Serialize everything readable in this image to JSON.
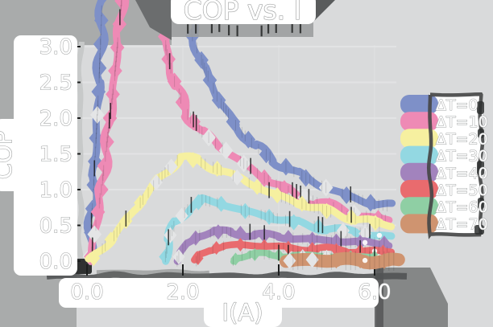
{
  "colors": {
    "outer_gray": "#a9abab",
    "inner_gray": "#d9dadb",
    "panel_white": "#ffffff",
    "dark_blob_left": "#6b6d6e",
    "dark_blob_right": "#595b5c",
    "title_band": "#9b9d9e",
    "corner_blob": "#858787",
    "axis_dark": "#515354",
    "spine_light": "#c7c9c9",
    "tick_black": "#1c1e1e",
    "origin_blob": "#2f3131",
    "legend_border": "#454747",
    "label_fill": "#ffffff",
    "label_stroke": "#a2a4a4"
  },
  "chart_data": {
    "type": "line",
    "style": "xkcd-sketch",
    "title": "COP vs. I",
    "xlabel": "I(A)",
    "ylabel": "COP",
    "xlim": [
      0,
      6.45
    ],
    "ylim": [
      0,
      3.2
    ],
    "grid": "faint",
    "legend_position": "right",
    "marker": "diamond",
    "xticks": [
      {
        "label": "0.0",
        "value": 0
      },
      {
        "label": "2.0",
        "value": 2
      },
      {
        "label": "4.0",
        "value": 4
      },
      {
        "label": "6.0",
        "value": 6
      }
    ],
    "yticks": [
      {
        "label": "0.0",
        "value": 0
      },
      {
        "label": "0.5",
        "value": 0.5
      },
      {
        "label": "1.0",
        "value": 1
      },
      {
        "label": "1.5",
        "value": 1.5
      },
      {
        "label": "2.0",
        "value": 2
      },
      {
        "label": "2.5",
        "value": 2.5
      },
      {
        "label": "3.0",
        "value": 3
      }
    ],
    "series": [
      {
        "name": "ΔT=0",
        "color": "#7e90c8",
        "x": [
          0.05,
          0.15,
          0.25,
          0.33,
          2.08,
          2.2,
          2.45,
          2.75,
          3.1,
          3.5,
          3.9,
          4.4,
          4.9,
          5.5,
          6.0,
          6.35
        ],
        "y": [
          0,
          1.2,
          2.5,
          3.9,
          3.9,
          3.15,
          2.7,
          2.25,
          1.9,
          1.6,
          1.42,
          1.22,
          1.05,
          0.9,
          0.8,
          0.76
        ]
      },
      {
        "name": "ΔT=10",
        "color": "#ee8ab5",
        "x": [
          0.07,
          0.3,
          0.55,
          0.76,
          1.53,
          1.65,
          1.85,
          2.1,
          2.4,
          2.75,
          3.2,
          3.7,
          4.2,
          4.8,
          5.4,
          6.0,
          6.3
        ],
        "y": [
          0,
          1.0,
          2.4,
          3.9,
          3.9,
          2.95,
          2.45,
          2.05,
          1.8,
          1.62,
          1.4,
          1.16,
          0.98,
          0.82,
          0.7,
          0.6,
          0.57
        ]
      },
      {
        "name": "ΔT=20",
        "color": "#f6f0a0",
        "x": [
          0.08,
          0.5,
          1.0,
          1.5,
          1.95,
          2.3,
          2.8,
          3.3,
          3.8,
          4.4,
          5.0,
          5.6,
          6.1,
          6.35
        ],
        "y": [
          0,
          0.3,
          0.72,
          1.15,
          1.45,
          1.4,
          1.27,
          1.12,
          0.96,
          0.82,
          0.7,
          0.6,
          0.52,
          0.5
        ]
      },
      {
        "name": "ΔT=30",
        "color": "#93d8e2",
        "x": [
          1.62,
          1.7,
          1.85,
          2.1,
          2.4,
          2.8,
          3.3,
          3.8,
          4.4,
          5.0,
          5.6,
          6.1,
          6.35
        ],
        "y": [
          0,
          0.3,
          0.55,
          0.72,
          0.86,
          0.8,
          0.7,
          0.62,
          0.53,
          0.46,
          0.4,
          0.36,
          0.34
        ]
      },
      {
        "name": "ΔT=40",
        "color": "#a283bd",
        "x": [
          1.88,
          1.95,
          2.1,
          2.35,
          2.65,
          3.0,
          3.5,
          4.0,
          4.6,
          5.2,
          5.8,
          6.3
        ],
        "y": [
          0,
          0.12,
          0.25,
          0.36,
          0.41,
          0.4,
          0.37,
          0.34,
          0.31,
          0.28,
          0.26,
          0.25
        ]
      },
      {
        "name": "ΔT=50",
        "color": "#e96b6e",
        "x": [
          2.28,
          2.35,
          2.55,
          2.85,
          3.2,
          3.7,
          4.2,
          4.8,
          5.4,
          6.0,
          6.35
        ],
        "y": [
          0,
          0.08,
          0.16,
          0.21,
          0.23,
          0.21,
          0.19,
          0.17,
          0.15,
          0.14,
          0.13
        ]
      },
      {
        "name": "ΔT=60",
        "color": "#8fcfa4",
        "x": [
          3.05,
          3.15,
          3.4,
          3.8,
          4.3,
          4.9,
          5.5,
          6.1,
          6.4
        ],
        "y": [
          0,
          0.06,
          0.09,
          0.09,
          0.08,
          0.07,
          0.06,
          0.06,
          0.05
        ]
      },
      {
        "name": "ΔT=70",
        "color": "#cf9470",
        "x": [
          4.15,
          4.3,
          4.7,
          5.2,
          5.8,
          6.3,
          6.5
        ],
        "y": [
          0,
          0.01,
          0.02,
          0.01,
          0.01,
          0.0,
          0.0
        ]
      }
    ]
  }
}
